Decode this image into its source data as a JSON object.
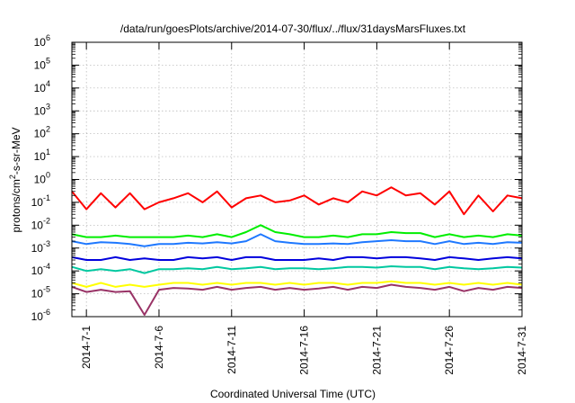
{
  "chart_data": {
    "type": "line",
    "title": "/data/run/goesPlots/archive/2014-07-30/flux/../flux/31daysMarsFluxes.txt",
    "xlabel": "Coordinated Universal Time (UTC)",
    "ylabel": {
      "base": "protons/cm",
      "sup": "2",
      "rest": "-s-sr-MeV"
    },
    "xlim": [
      "2014-06-30",
      "2014-07-31"
    ],
    "ylim": [
      1e-06,
      1000000.0
    ],
    "yscale": "log",
    "grid": true,
    "legend": "none",
    "x_ticks": [
      "2014-7-1",
      "2014-7-6",
      "2014-7-11",
      "2014-7-16",
      "2014-7-21",
      "2014-7-26",
      "2014-7-31"
    ],
    "y_ticks": [
      {
        "base": "10",
        "exp": "-6"
      },
      {
        "base": "10",
        "exp": "-5"
      },
      {
        "base": "10",
        "exp": "-4"
      },
      {
        "base": "10",
        "exp": "-3"
      },
      {
        "base": "10",
        "exp": "-2"
      },
      {
        "base": "10",
        "exp": "-1"
      },
      {
        "base": "10",
        "exp": "0"
      },
      {
        "base": "10",
        "exp": "1"
      },
      {
        "base": "10",
        "exp": "2"
      },
      {
        "base": "10",
        "exp": "3"
      },
      {
        "base": "10",
        "exp": "4"
      },
      {
        "base": "10",
        "exp": "5"
      },
      {
        "base": "10",
        "exp": "6"
      }
    ],
    "x": [
      "2014-06-30",
      "2014-07-01",
      "2014-07-02",
      "2014-07-03",
      "2014-07-04",
      "2014-07-05",
      "2014-07-06",
      "2014-07-07",
      "2014-07-08",
      "2014-07-09",
      "2014-07-10",
      "2014-07-11",
      "2014-07-12",
      "2014-07-13",
      "2014-07-14",
      "2014-07-15",
      "2014-07-16",
      "2014-07-17",
      "2014-07-18",
      "2014-07-19",
      "2014-07-20",
      "2014-07-21",
      "2014-07-22",
      "2014-07-23",
      "2014-07-24",
      "2014-07-25",
      "2014-07-26",
      "2014-07-27",
      "2014-07-28",
      "2014-07-29",
      "2014-07-30",
      "2014-07-31"
    ],
    "series": [
      {
        "color": "#ff0000",
        "values": [
          0.3,
          0.05,
          0.25,
          0.06,
          0.25,
          0.05,
          0.1,
          0.15,
          0.25,
          0.1,
          0.3,
          0.06,
          0.15,
          0.2,
          0.1,
          0.12,
          0.2,
          0.08,
          0.15,
          0.1,
          0.3,
          0.2,
          0.45,
          0.2,
          0.25,
          0.08,
          0.3,
          0.03,
          0.2,
          0.04,
          0.2,
          0.15
        ]
      },
      {
        "color": "#00ee00",
        "values": [
          0.004,
          0.003,
          0.003,
          0.0035,
          0.003,
          0.003,
          0.003,
          0.003,
          0.0035,
          0.003,
          0.004,
          0.003,
          0.005,
          0.01,
          0.005,
          0.004,
          0.003,
          0.003,
          0.0035,
          0.003,
          0.004,
          0.004,
          0.005,
          0.0045,
          0.0045,
          0.003,
          0.004,
          0.003,
          0.0035,
          0.003,
          0.004,
          0.0035
        ]
      },
      {
        "color": "#1e78ff",
        "values": [
          0.002,
          0.0015,
          0.0018,
          0.0017,
          0.0015,
          0.0012,
          0.0015,
          0.0015,
          0.0017,
          0.0016,
          0.0018,
          0.0016,
          0.002,
          0.004,
          0.002,
          0.0017,
          0.0015,
          0.0015,
          0.0016,
          0.0015,
          0.0018,
          0.002,
          0.0022,
          0.002,
          0.002,
          0.0015,
          0.002,
          0.0015,
          0.0017,
          0.0015,
          0.0018,
          0.0017
        ]
      },
      {
        "color": "#0000dd",
        "values": [
          0.0004,
          0.0003,
          0.0003,
          0.0004,
          0.0003,
          0.00035,
          0.0003,
          0.0003,
          0.0004,
          0.00035,
          0.0004,
          0.0003,
          0.0004,
          0.0004,
          0.0003,
          0.0003,
          0.0003,
          0.00035,
          0.0003,
          0.0004,
          0.0004,
          0.00035,
          0.0004,
          0.0004,
          0.00035,
          0.0003,
          0.0004,
          0.00035,
          0.0003,
          0.00035,
          0.0004,
          0.00035
        ]
      },
      {
        "color": "#00c8a0",
        "values": [
          0.00015,
          0.0001,
          0.00012,
          0.0001,
          0.00012,
          8e-05,
          0.00012,
          0.00012,
          0.00013,
          0.00012,
          0.00015,
          0.00012,
          0.00013,
          0.00015,
          0.00012,
          0.00013,
          0.00013,
          0.00012,
          0.00013,
          0.00015,
          0.00015,
          0.00014,
          0.00016,
          0.00015,
          0.00015,
          0.00012,
          0.00015,
          0.00013,
          0.00012,
          0.00013,
          0.00015,
          0.00014
        ]
      },
      {
        "color": "#ffff00",
        "values": [
          3e-05,
          2e-05,
          3e-05,
          2e-05,
          2.5e-05,
          2e-05,
          2.5e-05,
          3e-05,
          3e-05,
          2.5e-05,
          3e-05,
          2.5e-05,
          3e-05,
          3e-05,
          2.5e-05,
          3e-05,
          2.5e-05,
          3e-05,
          3e-05,
          2.5e-05,
          3e-05,
          3e-05,
          3.5e-05,
          3e-05,
          3e-05,
          2.5e-05,
          3e-05,
          2.5e-05,
          3e-05,
          2.5e-05,
          3e-05,
          2.5e-05
        ]
      },
      {
        "color": "#993366",
        "values": [
          2e-05,
          1.2e-05,
          1.5e-05,
          1.2e-05,
          1.3e-05,
          1.2e-06,
          1.5e-05,
          1.8e-05,
          1.7e-05,
          1.5e-05,
          2e-05,
          1.5e-05,
          1.8e-05,
          2e-05,
          1.5e-05,
          1.8e-05,
          1.5e-05,
          1.7e-05,
          2e-05,
          1.5e-05,
          2e-05,
          1.8e-05,
          2.5e-05,
          2e-05,
          1.8e-05,
          1.5e-05,
          2e-05,
          1.3e-05,
          1.8e-05,
          1.5e-05,
          2e-05,
          1.8e-05
        ]
      }
    ]
  }
}
